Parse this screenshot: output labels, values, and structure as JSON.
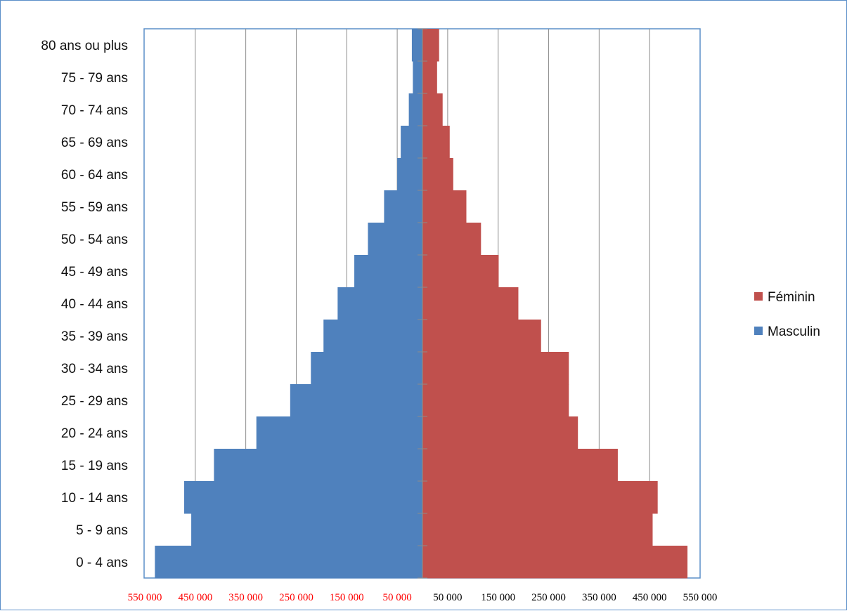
{
  "chart_data": {
    "type": "bar",
    "orientation": "horizontal",
    "subtype": "population-pyramid",
    "categories": [
      "0 - 4 ans",
      "5 - 9 ans",
      "10 - 14 ans",
      "15 - 19 ans",
      "20 - 24 ans",
      "25 - 29 ans",
      "30 - 34 ans",
      "35 - 39 ans",
      "40 - 44 ans",
      "45 - 49 ans",
      "50 - 54 ans",
      "55 - 59 ans",
      "60 - 64 ans",
      "65 - 69 ans",
      "70 - 74 ans",
      "75 - 79 ans",
      "80 ans ou plus"
    ],
    "series": [
      {
        "name": "Masculin",
        "color": "#4f81bd",
        "side": "left",
        "values": [
          530000,
          458000,
          472000,
          413000,
          329000,
          262000,
          221000,
          196000,
          168000,
          135000,
          108000,
          76000,
          50000,
          43000,
          27000,
          19000,
          21000
        ]
      },
      {
        "name": "Féminin",
        "color": "#c0504d",
        "side": "right",
        "values": [
          525000,
          456000,
          466000,
          387000,
          308000,
          290000,
          290000,
          235000,
          190000,
          151000,
          116000,
          87000,
          61000,
          54000,
          40000,
          29000,
          33000
        ]
      }
    ],
    "xlim": [
      -550000,
      550000
    ],
    "x_ticks": [
      -550000,
      -450000,
      -350000,
      -250000,
      -150000,
      -50000,
      50000,
      150000,
      250000,
      350000,
      450000,
      550000
    ],
    "x_tick_labels": [
      "550 000",
      "450 000",
      "350 000",
      "250 000",
      "150 000",
      "50 000",
      "50 000",
      "150 000",
      "250 000",
      "350 000",
      "450 000",
      "550 000"
    ],
    "negative_tick_color": "#ff0000",
    "positive_tick_color": "#000000",
    "gridlines": "vertical",
    "legend": {
      "position": "right",
      "order": [
        "Féminin",
        "Masculin"
      ]
    },
    "title": "",
    "xlabel": "",
    "ylabel": ""
  }
}
